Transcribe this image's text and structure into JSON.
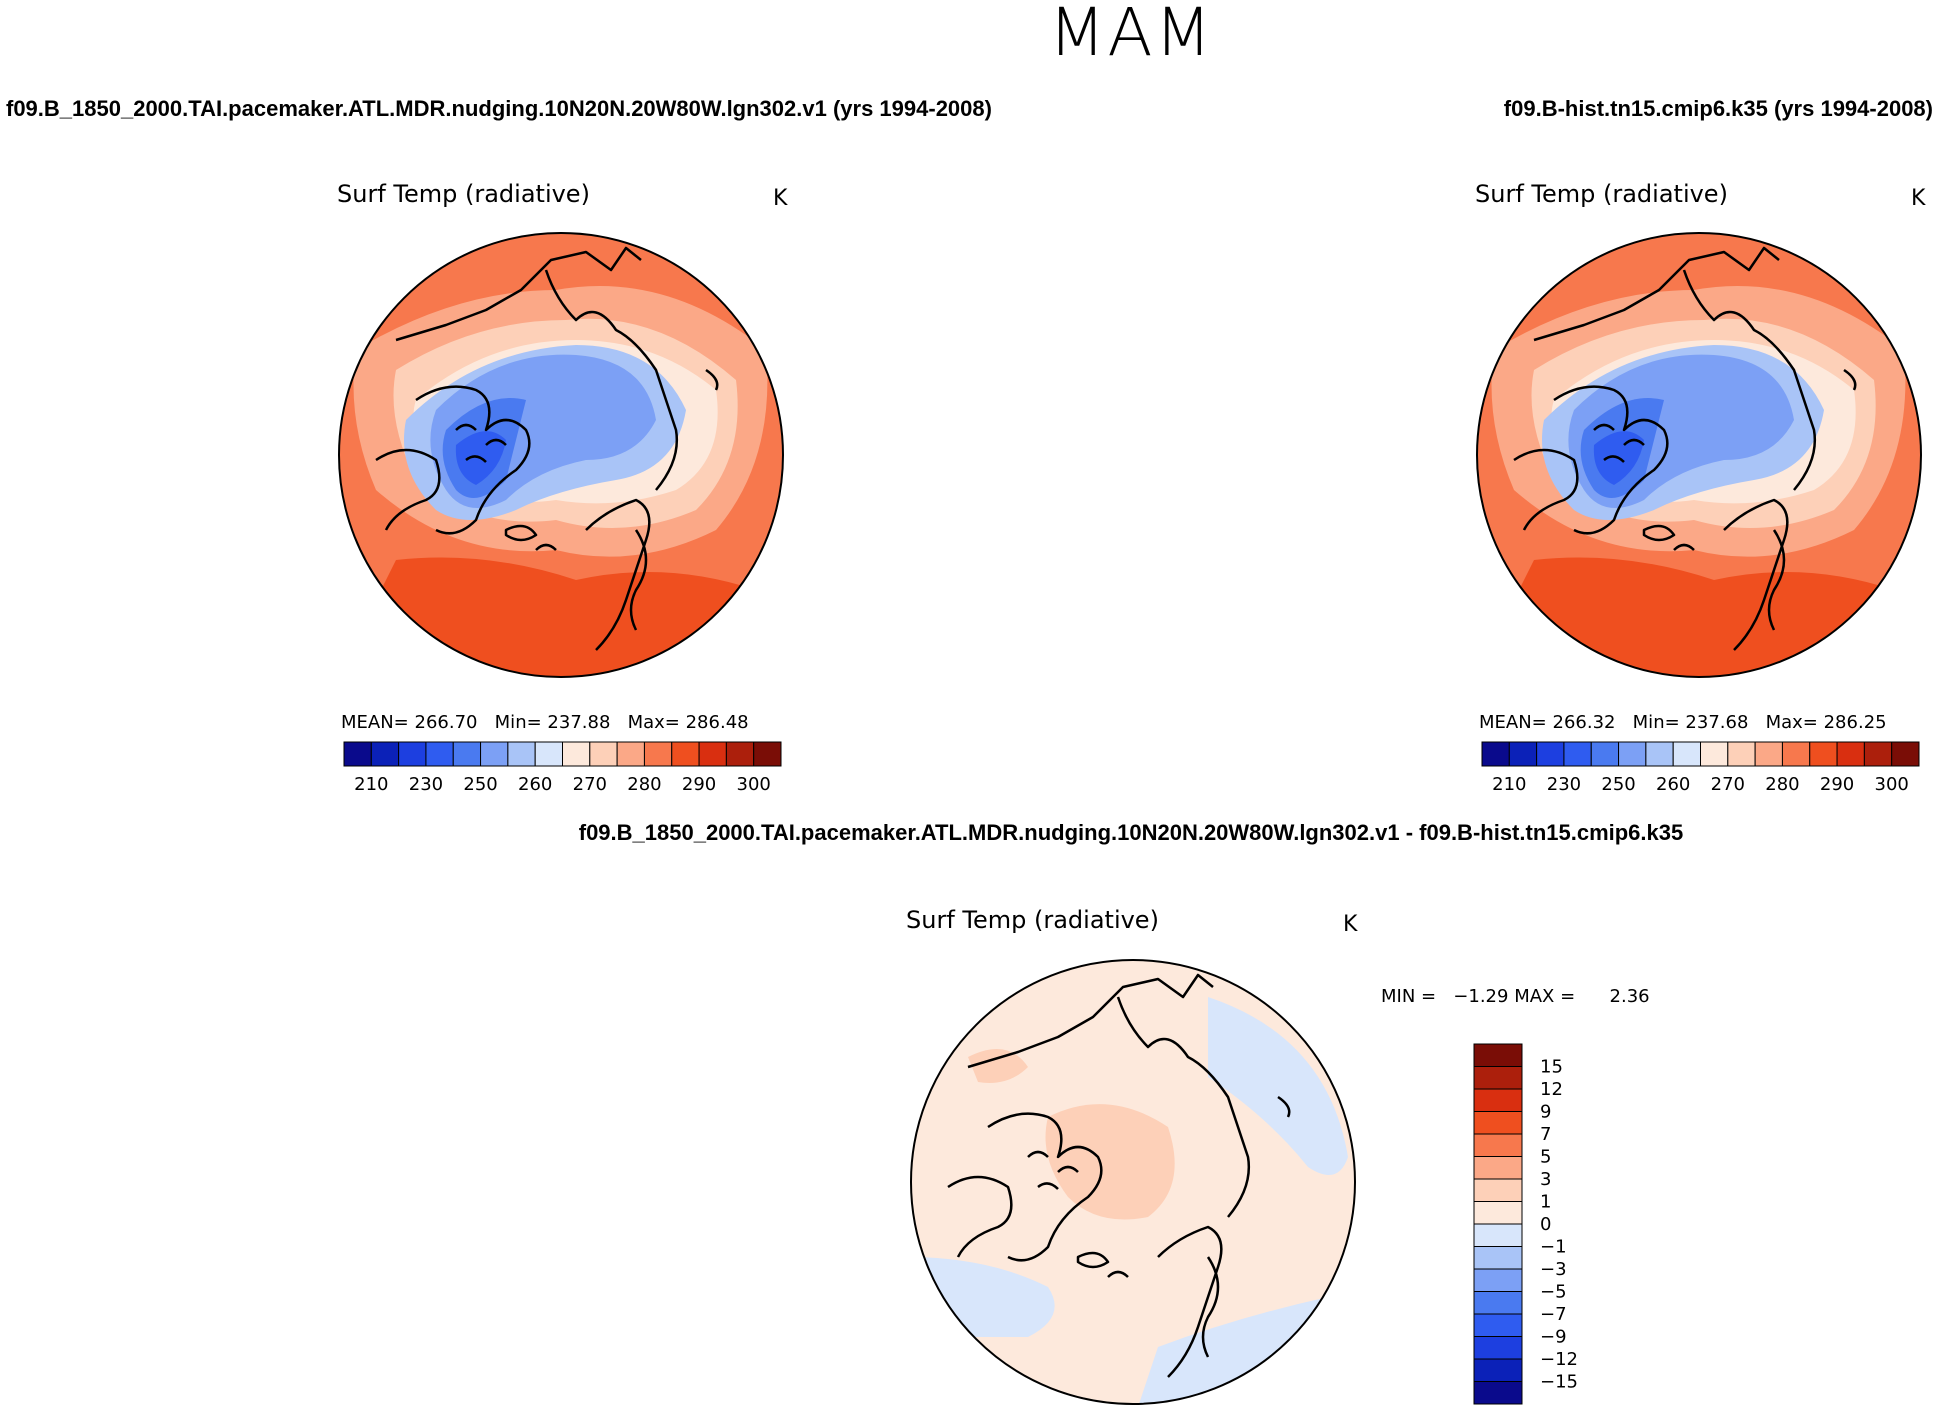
{
  "season": "MAM",
  "chart_data": [
    {
      "type": "heatmap",
      "projection": "north-polar-stereographic",
      "case_title": "f09.B_1850_2000.TAI.pacemaker.ATL.MDR.nudging.10N20N.20W80W.lgn302.v1 (yrs 1994-2008)",
      "title": "Surf Temp (radiative)",
      "units": "K",
      "stats": {
        "mean_label": "MEAN=",
        "mean": "266.70",
        "min_label": "Min=",
        "min": "237.88",
        "max_label": "Max=",
        "max": "286.48"
      },
      "colorbar": {
        "orientation": "horizontal",
        "colors": [
          "#0a0a8c",
          "#0b21b8",
          "#1d3fe0",
          "#2f5cf0",
          "#4a7af0",
          "#7ca0f5",
          "#a9c4f7",
          "#d8e6fb",
          "#fde9dc",
          "#fdd0b8",
          "#fba887",
          "#f7784d",
          "#ef4f1f",
          "#d92f10",
          "#ac1f0c",
          "#7a0d06"
        ],
        "tick_labels": [
          "210",
          "230",
          "250",
          "260",
          "270",
          "280",
          "290",
          "300"
        ]
      }
    },
    {
      "type": "heatmap",
      "projection": "north-polar-stereographic",
      "case_title": "f09.B-hist.tn15.cmip6.k35 (yrs 1994-2008)",
      "title": "Surf Temp (radiative)",
      "units": "K",
      "stats": {
        "mean_label": "MEAN=",
        "mean": "266.32",
        "min_label": "Min=",
        "min": "237.68",
        "max_label": "Max=",
        "max": "286.25"
      },
      "colorbar": {
        "orientation": "horizontal",
        "colors": [
          "#0a0a8c",
          "#0b21b8",
          "#1d3fe0",
          "#2f5cf0",
          "#4a7af0",
          "#7ca0f5",
          "#a9c4f7",
          "#d8e6fb",
          "#fde9dc",
          "#fdd0b8",
          "#fba887",
          "#f7784d",
          "#ef4f1f",
          "#d92f10",
          "#ac1f0c",
          "#7a0d06"
        ],
        "tick_labels": [
          "210",
          "230",
          "250",
          "260",
          "270",
          "280",
          "290",
          "300"
        ]
      }
    },
    {
      "type": "heatmap",
      "projection": "north-polar-stereographic",
      "case_title": "f09.B_1850_2000.TAI.pacemaker.ATL.MDR.nudging.10N20N.20W80W.lgn302.v1 - f09.B-hist.tn15.cmip6.k35",
      "title": "Surf Temp (radiative)",
      "units": "K",
      "stats": {
        "min_label": "MIN =",
        "min": "−1.29",
        "max_label": "MAX =",
        "max": "2.36"
      },
      "colorbar": {
        "orientation": "vertical",
        "colors_top_to_bottom": [
          "#7a0d06",
          "#ac1f0c",
          "#d92f10",
          "#ef4f1f",
          "#f7784d",
          "#fba887",
          "#fdd0b8",
          "#fde9dc",
          "#d8e6fb",
          "#a9c4f7",
          "#7ca0f5",
          "#4a7af0",
          "#2f5cf0",
          "#1d3fe0",
          "#0b21b8",
          "#0a0a8c"
        ],
        "tick_labels_top_to_bottom": [
          "15",
          "12",
          "9",
          "7",
          "5",
          "3",
          "1",
          "0",
          "−1",
          "−3",
          "−5",
          "−7",
          "−9",
          "−12",
          "−15"
        ]
      }
    }
  ]
}
